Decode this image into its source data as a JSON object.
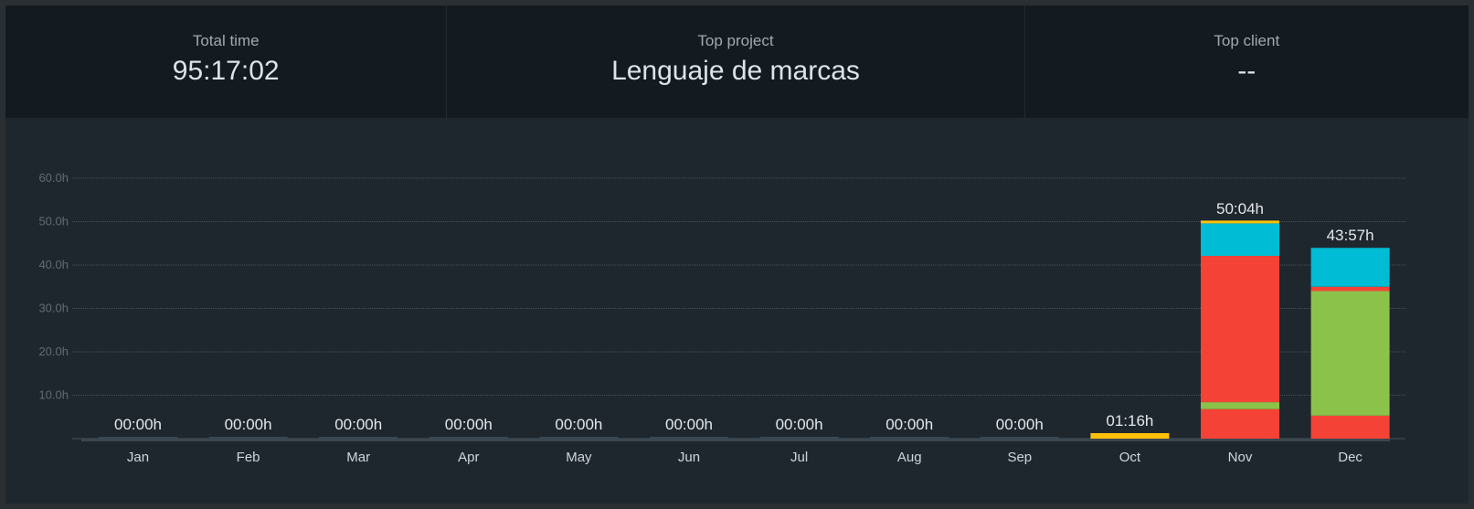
{
  "summary": {
    "total_time": {
      "label": "Total time",
      "value": "95:17:02"
    },
    "top_project": {
      "label": "Top project",
      "value": "Lenguaje de marcas"
    },
    "top_client": {
      "label": "Top client",
      "value": "--"
    }
  },
  "colors": {
    "cyan": "#00bcd4",
    "red": "#f44336",
    "green": "#8bc34a",
    "yellow": "#ffc107",
    "empty": "#3b4750"
  },
  "chart_data": {
    "type": "bar",
    "stacked": true,
    "categories": [
      "Jan",
      "Feb",
      "Mar",
      "Apr",
      "May",
      "Jun",
      "Jul",
      "Aug",
      "Sep",
      "Oct",
      "Nov",
      "Dec"
    ],
    "totals_labels": [
      "00:00h",
      "00:00h",
      "00:00h",
      "00:00h",
      "00:00h",
      "00:00h",
      "00:00h",
      "00:00h",
      "00:00h",
      "01:16h",
      "50:04h",
      "43:57h"
    ],
    "totals_hours": [
      0,
      0,
      0,
      0,
      0,
      0,
      0,
      0,
      0,
      1.27,
      50.07,
      43.95
    ],
    "segments": [
      [],
      [],
      [],
      [],
      [],
      [],
      [],
      [],
      [],
      [
        {
          "color": "#ffc107",
          "hours": 1.27
        }
      ],
      [
        {
          "color": "#f44336",
          "hours": 6.8
        },
        {
          "color": "#8bc34a",
          "hours": 1.6
        },
        {
          "color": "#f44336",
          "hours": 33.7
        },
        {
          "color": "#00bcd4",
          "hours": 7.5
        },
        {
          "color": "#ffc107",
          "hours": 0.47
        }
      ],
      [
        {
          "color": "#f44336",
          "hours": 5.3
        },
        {
          "color": "#8bc34a",
          "hours": 28.7
        },
        {
          "color": "#f44336",
          "hours": 1.0
        },
        {
          "color": "#00bcd4",
          "hours": 8.95
        }
      ]
    ],
    "y_ticks": [
      "10.0h",
      "20.0h",
      "30.0h",
      "40.0h",
      "50.0h",
      "60.0h"
    ],
    "y_tick_values": [
      10,
      20,
      30,
      40,
      50,
      60
    ],
    "ylim": [
      0,
      60
    ],
    "grid": true
  }
}
